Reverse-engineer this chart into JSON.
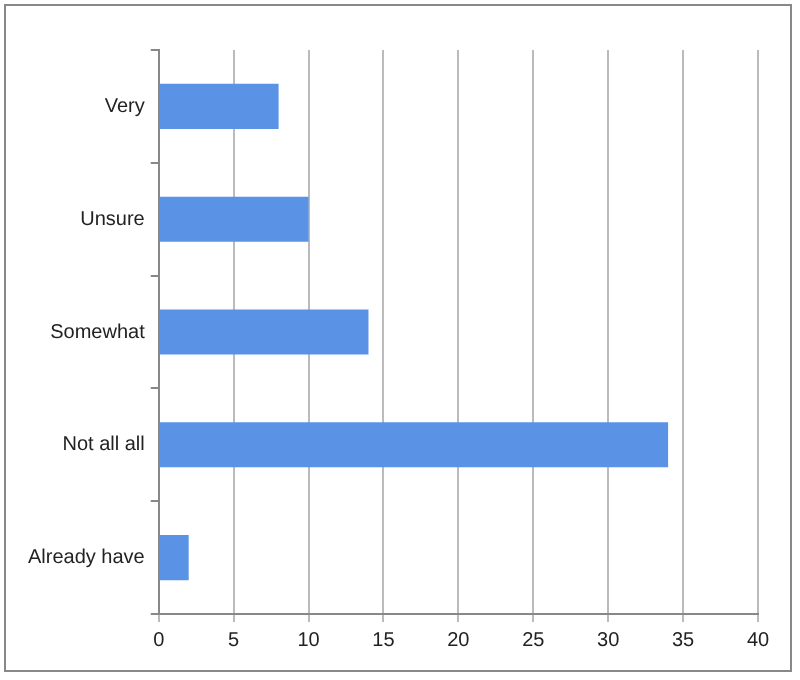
{
  "chart_data": {
    "type": "bar",
    "orientation": "horizontal",
    "categories": [
      "Very",
      "Unsure",
      "Somewhat",
      "Not all all",
      "Already have"
    ],
    "values": [
      8,
      10,
      14,
      34,
      2
    ],
    "color": "#5a93e6",
    "xlim": [
      0,
      40
    ],
    "xticks": [
      0,
      5,
      10,
      15,
      20,
      25,
      30,
      35,
      40
    ],
    "grid": "x",
    "legend": false
  }
}
